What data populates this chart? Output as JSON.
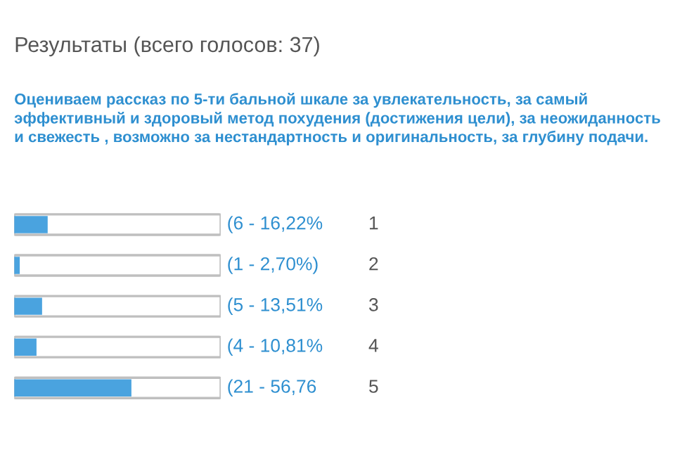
{
  "chart_data": {
    "type": "bar",
    "orientation": "horizontal",
    "title": "Результаты (всего голосов: 37)",
    "subtitle": "Оцениваем рассказ по 5-ти бальной шкале за увлекательность, за самый эффективный и здоровый метод похудения (достижения цели), за неожиданность и свежесть , возможно за нестандартность и оригинальность, за глубину подачи.",
    "categories": [
      "1",
      "2",
      "3",
      "4",
      "5"
    ],
    "values": [
      6,
      1,
      5,
      4,
      21
    ],
    "value_labels": [
      "(6 - 16,22%",
      "(1 - 2,70%)",
      "(5 - 13,51%",
      "(4 - 10,81%",
      "(21 - 56,76"
    ],
    "color": "#4aa3df",
    "tick_labels": false
  }
}
